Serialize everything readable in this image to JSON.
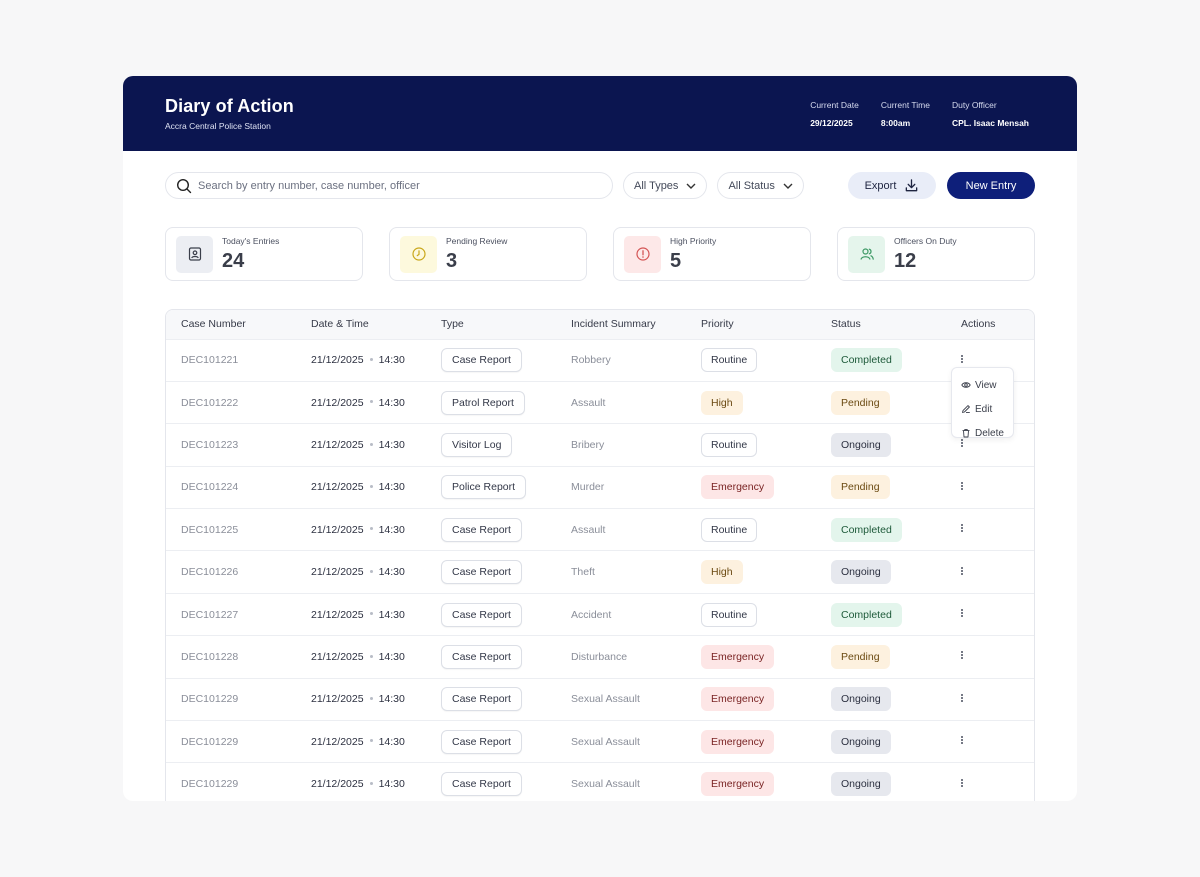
{
  "header": {
    "title": "Diary of Action",
    "subtitle": "Accra Central Police Station",
    "meta": [
      {
        "label": "Current Date",
        "value": "29/12/2025"
      },
      {
        "label": "Current Time",
        "value": "8:00am"
      },
      {
        "label": "Duty Officer",
        "value": "CPL. Isaac Mensah"
      }
    ]
  },
  "toolbar": {
    "search_placeholder": "Search by entry number, case number, officer",
    "filter_type": "All Types",
    "filter_status": "All Status",
    "export_label": "Export",
    "new_entry_label": "New Entry"
  },
  "stats": [
    {
      "label": "Today's Entries",
      "value": "24",
      "icon": "document-user-icon",
      "bg": "#eceef3",
      "color": "#3a3e4a"
    },
    {
      "label": "Pending Review",
      "value": "3",
      "icon": "clock-icon",
      "bg": "#fdf9dd",
      "color": "#c9a71a"
    },
    {
      "label": "High Priority",
      "value": "5",
      "icon": "alert-circle-icon",
      "bg": "#fde8e8",
      "color": "#d45454"
    },
    {
      "label": "Officers On Duty",
      "value": "12",
      "icon": "users-icon",
      "bg": "#e5f5ec",
      "color": "#3e9a66"
    }
  ],
  "table": {
    "columns": [
      "Case Number",
      "Date & Time",
      "Type",
      "Incident Summary",
      "Priority",
      "Status",
      "Actions"
    ],
    "rows": [
      {
        "case": "DEC101221",
        "date": "21/12/2025",
        "time": "14:30",
        "type": "Case Report",
        "summary": "Robbery",
        "priority": "Routine",
        "status": "Completed"
      },
      {
        "case": "DEC101222",
        "date": "21/12/2025",
        "time": "14:30",
        "type": "Patrol Report",
        "summary": "Assault",
        "priority": "High",
        "status": "Pending"
      },
      {
        "case": "DEC101223",
        "date": "21/12/2025",
        "time": "14:30",
        "type": "Visitor Log",
        "summary": "Bribery",
        "priority": "Routine",
        "status": "Ongoing"
      },
      {
        "case": "DEC101224",
        "date": "21/12/2025",
        "time": "14:30",
        "type": "Police Report",
        "summary": "Murder",
        "priority": "Emergency",
        "status": "Pending"
      },
      {
        "case": "DEC101225",
        "date": "21/12/2025",
        "time": "14:30",
        "type": "Case Report",
        "summary": "Assault",
        "priority": "Routine",
        "status": "Completed"
      },
      {
        "case": "DEC101226",
        "date": "21/12/2025",
        "time": "14:30",
        "type": "Case Report",
        "summary": "Theft",
        "priority": "High",
        "status": "Ongoing"
      },
      {
        "case": "DEC101227",
        "date": "21/12/2025",
        "time": "14:30",
        "type": "Case Report",
        "summary": "Accident",
        "priority": "Routine",
        "status": "Completed"
      },
      {
        "case": "DEC101228",
        "date": "21/12/2025",
        "time": "14:30",
        "type": "Case Report",
        "summary": "Disturbance",
        "priority": "Emergency",
        "status": "Pending"
      },
      {
        "case": "DEC101229",
        "date": "21/12/2025",
        "time": "14:30",
        "type": "Case Report",
        "summary": "Sexual Assault",
        "priority": "Emergency",
        "status": "Ongoing"
      },
      {
        "case": "DEC101229",
        "date": "21/12/2025",
        "time": "14:30",
        "type": "Case Report",
        "summary": "Sexual Assault",
        "priority": "Emergency",
        "status": "Ongoing"
      },
      {
        "case": "DEC101229",
        "date": "21/12/2025",
        "time": "14:30",
        "type": "Case Report",
        "summary": "Sexual Assault",
        "priority": "Emergency",
        "status": "Ongoing"
      }
    ]
  },
  "actions_menu": {
    "items": [
      {
        "label": "View",
        "icon": "eye-icon"
      },
      {
        "label": "Edit",
        "icon": "pencil-icon"
      },
      {
        "label": "Delete",
        "icon": "trash-icon"
      }
    ]
  },
  "colors": {
    "header_bg": "#0b1550",
    "primary_button": "#0e1f7a"
  }
}
